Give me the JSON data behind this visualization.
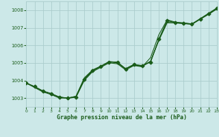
{
  "background_color": "#cce8e8",
  "grid_color": "#aacccc",
  "line_color": "#1a5c1a",
  "title": "Graphe pression niveau de la mer (hPa)",
  "xlim": [
    0,
    23
  ],
  "ylim": [
    1002.5,
    1008.5
  ],
  "yticks": [
    1003,
    1004,
    1005,
    1006,
    1007,
    1008
  ],
  "xticks": [
    0,
    1,
    2,
    3,
    4,
    5,
    6,
    7,
    8,
    9,
    10,
    11,
    12,
    13,
    14,
    15,
    16,
    17,
    18,
    19,
    20,
    21,
    22,
    23
  ],
  "line_marked": {
    "x": [
      0,
      1,
      2,
      3,
      4,
      5,
      6,
      7,
      8,
      9,
      10,
      11,
      12,
      13,
      14,
      15,
      16,
      17,
      18,
      19,
      20,
      21,
      22,
      23
    ],
    "y": [
      1003.85,
      1003.65,
      1003.4,
      1003.25,
      1003.05,
      1003.0,
      1003.05,
      1004.05,
      1004.55,
      1004.8,
      1005.05,
      1005.05,
      1004.65,
      1004.9,
      1004.85,
      1005.05,
      1006.35,
      1007.4,
      1007.3,
      1007.25,
      1007.2,
      1007.5,
      1007.8,
      1008.1
    ]
  },
  "line_smooth1": {
    "x": [
      0,
      1,
      2,
      3,
      4,
      5,
      6,
      7,
      8,
      9,
      10,
      11,
      12,
      13,
      14,
      15,
      16,
      17,
      18,
      19,
      20,
      21,
      22,
      23
    ],
    "y": [
      1003.85,
      1003.65,
      1003.4,
      1003.25,
      1003.05,
      1003.0,
      1003.1,
      1004.15,
      1004.6,
      1004.82,
      1005.08,
      1005.02,
      1004.68,
      1004.92,
      1004.82,
      1005.1,
      1006.3,
      1007.3,
      1007.28,
      1007.25,
      1007.22,
      1007.5,
      1007.78,
      1008.08
    ]
  },
  "line_smooth2": {
    "x": [
      0,
      1,
      2,
      3,
      4,
      5,
      6,
      7,
      8,
      9,
      10,
      11,
      12,
      13,
      14,
      15,
      16,
      17,
      18,
      19,
      20,
      21,
      22,
      23
    ],
    "y": [
      1003.85,
      1003.65,
      1003.4,
      1003.25,
      1003.05,
      1003.0,
      1003.1,
      1004.1,
      1004.58,
      1004.8,
      1005.06,
      1005.0,
      1004.65,
      1004.88,
      1004.8,
      1005.08,
      1006.28,
      1007.28,
      1007.27,
      1007.24,
      1007.2,
      1007.48,
      1007.76,
      1008.06
    ]
  },
  "line_diverge": {
    "x": [
      0,
      1,
      2,
      3,
      4,
      5,
      6,
      7,
      8,
      9,
      10,
      11,
      12,
      13,
      14,
      15,
      16,
      17,
      18,
      19,
      20,
      21,
      22,
      23
    ],
    "y": [
      1003.85,
      1003.6,
      1003.35,
      1003.2,
      1003.0,
      1003.0,
      1003.05,
      1004.0,
      1004.5,
      1004.75,
      1005.0,
      1004.95,
      1004.6,
      1004.85,
      1004.78,
      1005.3,
      1006.6,
      1007.45,
      1007.32,
      1007.28,
      1007.22,
      1007.52,
      1007.82,
      1008.12
    ]
  }
}
